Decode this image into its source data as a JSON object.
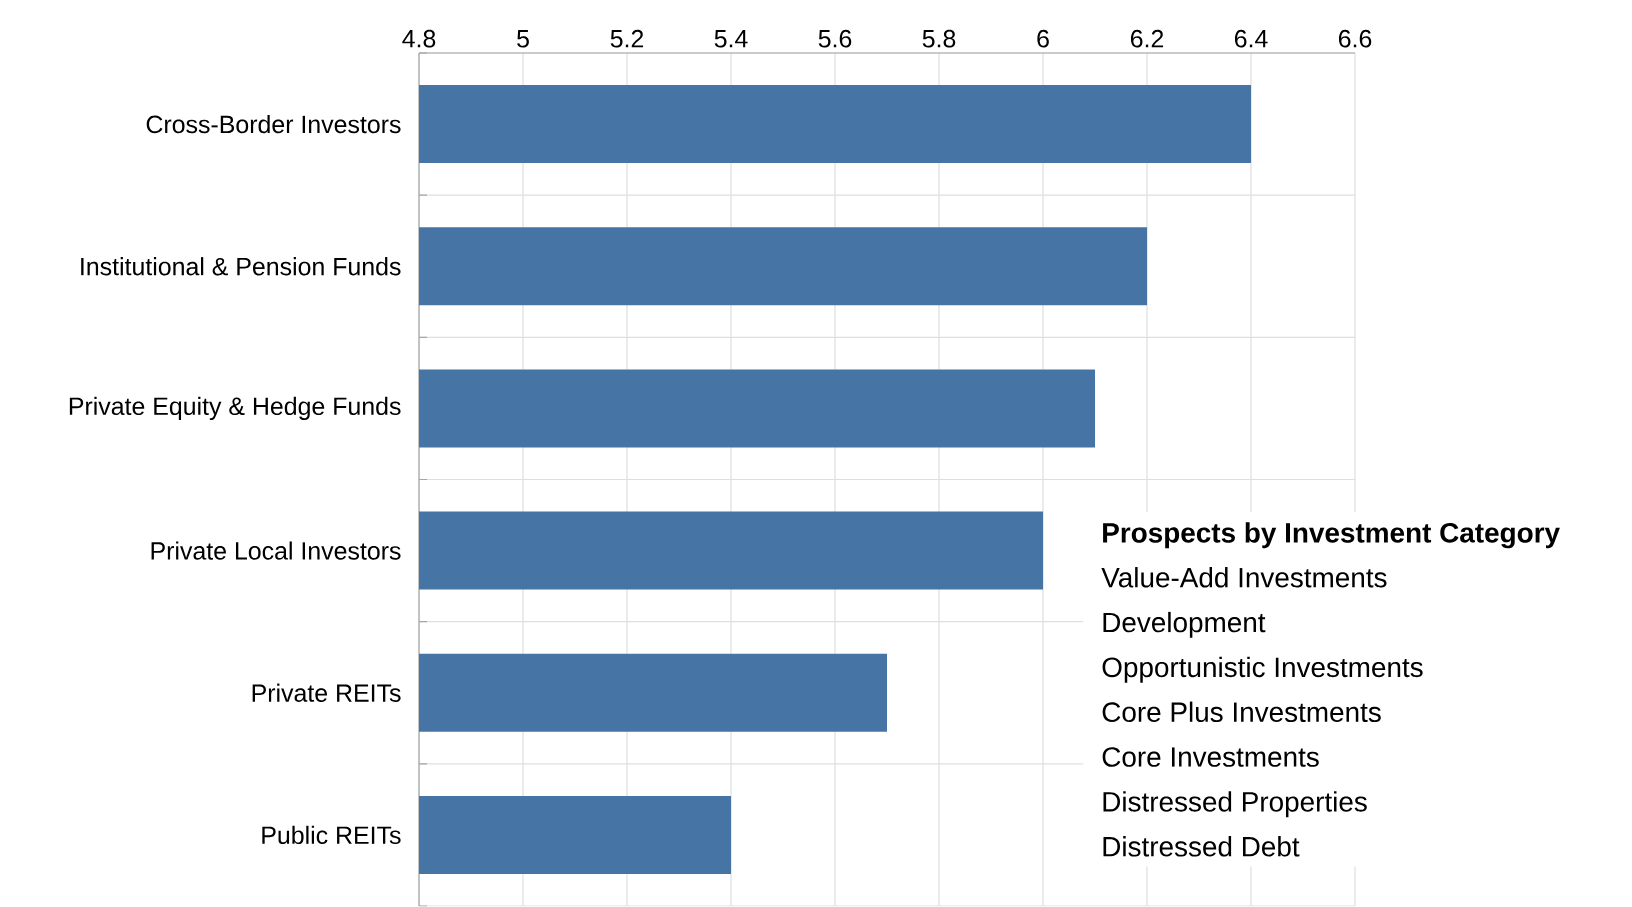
{
  "chart_data": [
    {
      "type": "bar",
      "orientation": "horizontal",
      "categories": [
        "Cross-Border Investors",
        "Institutional & Pension Funds",
        "Private Equity & Hedge Funds",
        "Private Local Investors",
        "Private REITs",
        "Public REITs"
      ],
      "values": [
        6.4,
        6.2,
        6.1,
        6.0,
        5.7,
        5.4
      ],
      "color": "#4674a4",
      "xlim": [
        4.8,
        6.6
      ],
      "xticks": [
        4.8,
        5,
        5.2,
        5.4,
        5.6,
        5.8,
        6,
        6.2,
        6.4,
        6.6
      ],
      "grid": true
    },
    {
      "type": "other",
      "title": "Prospects by Investment Category",
      "annotations": [
        "Value-Add Investments",
        "Development",
        "Opportunistic Investments",
        "Core Plus Investments",
        "Core Investments",
        "Distressed Properties",
        "Distressed Debt"
      ]
    }
  ]
}
